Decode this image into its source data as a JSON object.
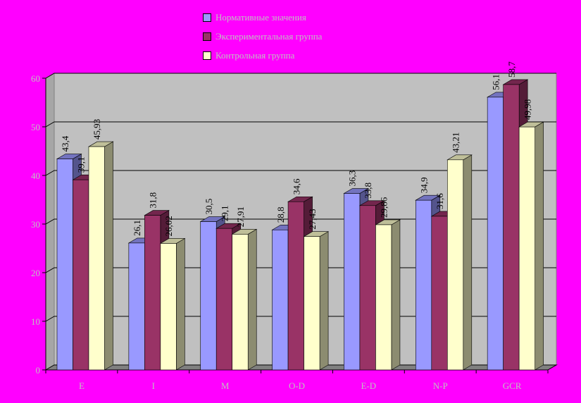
{
  "chart_data": {
    "type": "bar",
    "categories": [
      "E",
      "I",
      "M",
      "O-D",
      "E-D",
      "N-P",
      "GCR"
    ],
    "series": [
      {
        "name": "Нормативные значения",
        "values": [
          43.4,
          26.1,
          30.5,
          28.8,
          36.3,
          34.9,
          56.1
        ],
        "labels": [
          "43,4",
          "26,1",
          "30,5",
          "28,8",
          "36,3",
          "34,9",
          "56,1"
        ]
      },
      {
        "name": "Экспериментальная группа",
        "values": [
          39.1,
          31.8,
          29.1,
          34.6,
          33.8,
          31.6,
          58.7
        ],
        "labels": [
          "39,1",
          "31,8",
          "29,1",
          "34,6",
          "33,8",
          "31,6",
          "58,7"
        ]
      },
      {
        "name": "Контрольная группа",
        "values": [
          45.93,
          26.02,
          27.91,
          27.43,
          29.86,
          43.21,
          49.98
        ],
        "labels": [
          "45,93",
          "26,02",
          "27,91",
          "27,43",
          "29,86",
          "43,21",
          "49,98"
        ]
      }
    ],
    "colors": [
      "#9999ff",
      "#993366",
      "#ffffcc"
    ],
    "ylim": [
      0,
      60
    ],
    "yticks": [
      0,
      10,
      20,
      30,
      40,
      50,
      60
    ],
    "grid": true,
    "legend_position": "top",
    "title": "",
    "xlabel": "",
    "ylabel": ""
  }
}
